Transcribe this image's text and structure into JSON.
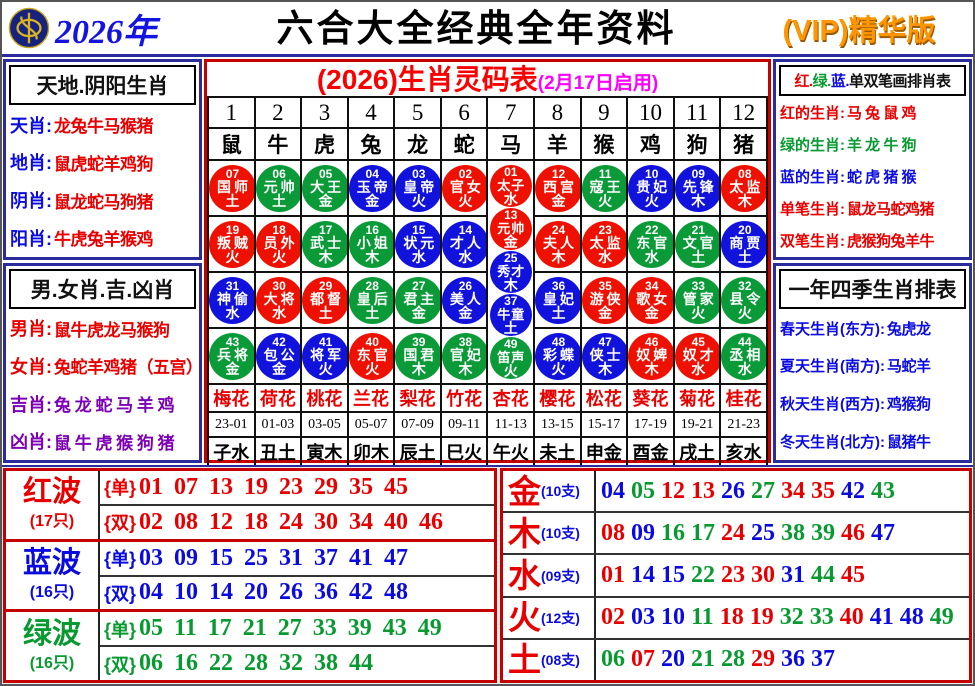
{
  "header": {
    "year": "2026年",
    "title": "六合大全经典全年资料",
    "vip": "(VIP)精华版"
  },
  "left_top": {
    "title": "天地.阴阳生肖",
    "rows": [
      {
        "label": "天肖",
        "value": "龙兔牛马猴猪",
        "lc": "blue",
        "vc": "red"
      },
      {
        "label": "地肖",
        "value": "鼠虎蛇羊鸡狗",
        "lc": "blue",
        "vc": "red"
      },
      {
        "label": "阴肖",
        "value": "鼠龙蛇马狗猪",
        "lc": "blue",
        "vc": "red"
      },
      {
        "label": "阳肖",
        "value": "牛虎兔羊猴鸡",
        "lc": "blue",
        "vc": "red"
      }
    ]
  },
  "left_bottom": {
    "title": "男.女肖.吉.凶肖",
    "rows": [
      {
        "label": "男肖",
        "value": "鼠牛虎龙马猴狗",
        "lc": "red",
        "vc": "red"
      },
      {
        "label": "女肖",
        "value": "兔蛇羊鸡猪（五宫）",
        "lc": "red",
        "vc": "red"
      },
      {
        "label": "吉肖",
        "value": "兔 龙 蛇 马 羊 鸡",
        "lc": "purple",
        "vc": "purple"
      },
      {
        "label": "凶肖",
        "value": "鼠 牛 虎 猴 狗 猪",
        "lc": "purple",
        "vc": "purple"
      }
    ]
  },
  "right_top": {
    "title_segments": [
      {
        "text": "红.",
        "c": "red"
      },
      {
        "text": "绿.",
        "c": "green"
      },
      {
        "text": "蓝.",
        "c": "blue"
      },
      {
        "text": "单双笔画排肖表",
        "c": "black"
      }
    ],
    "rows": [
      {
        "label": "红的生肖",
        "value": "马 兔 鼠 鸡",
        "lc": "red",
        "vc": "red"
      },
      {
        "label": "绿的生肖",
        "value": "羊 龙 牛 狗",
        "lc": "green",
        "vc": "green"
      },
      {
        "label": "蓝的生肖",
        "value": "蛇 虎 猪 猴",
        "lc": "blue",
        "vc": "blue"
      },
      {
        "label": "单笔生肖",
        "value": "鼠龙马蛇鸡猪",
        "lc": "red",
        "vc": "red"
      },
      {
        "label": "双笔生肖",
        "value": "虎猴狗兔羊牛",
        "lc": "red",
        "vc": "red"
      }
    ]
  },
  "right_bottom": {
    "title": "一年四季生肖排表",
    "rows": [
      {
        "label": "春天生肖(东方)",
        "value": "兔虎龙",
        "lc": "blue",
        "vc": "blue"
      },
      {
        "label": "夏天生肖(南方)",
        "value": "马蛇羊",
        "lc": "blue",
        "vc": "blue"
      },
      {
        "label": "秋天生肖(西方)",
        "value": "鸡猴狗",
        "lc": "blue",
        "vc": "blue"
      },
      {
        "label": "冬天生肖(北方)",
        "value": "鼠猪牛",
        "lc": "blue",
        "vc": "blue"
      }
    ]
  },
  "center": {
    "title": "(2026)生肖灵码表",
    "subtitle": "(2月17日启用)",
    "col_numbers": [
      "1",
      "2",
      "3",
      "4",
      "5",
      "6",
      "7",
      "8",
      "9",
      "10",
      "11",
      "12"
    ],
    "zodiacs": [
      "鼠",
      "牛",
      "虎",
      "兔",
      "龙",
      "蛇",
      "马",
      "羊",
      "猴",
      "鸡",
      "狗",
      "猪"
    ],
    "columns": [
      {
        "circles": [
          {
            "n": "07",
            "name": "国师",
            "elem": "土"
          },
          {
            "n": "19",
            "name": "叛贼",
            "elem": "火"
          },
          {
            "n": "31",
            "name": "神偷",
            "elem": "水"
          },
          {
            "n": "43",
            "name": "兵将",
            "elem": "金"
          }
        ]
      },
      {
        "circles": [
          {
            "n": "06",
            "name": "元帅",
            "elem": "土"
          },
          {
            "n": "18",
            "name": "员外",
            "elem": "火"
          },
          {
            "n": "30",
            "name": "大将",
            "elem": "水"
          },
          {
            "n": "42",
            "name": "包公",
            "elem": "金"
          }
        ]
      },
      {
        "circles": [
          {
            "n": "05",
            "name": "大王",
            "elem": "金"
          },
          {
            "n": "17",
            "name": "武士",
            "elem": "木"
          },
          {
            "n": "29",
            "name": "都督",
            "elem": "土"
          },
          {
            "n": "41",
            "name": "将军",
            "elem": "火"
          }
        ]
      },
      {
        "circles": [
          {
            "n": "04",
            "name": "玉帝",
            "elem": "金"
          },
          {
            "n": "16",
            "name": "小姐",
            "elem": "木"
          },
          {
            "n": "28",
            "name": "皇后",
            "elem": "土"
          },
          {
            "n": "40",
            "name": "东官",
            "elem": "火"
          }
        ]
      },
      {
        "circles": [
          {
            "n": "03",
            "name": "皇帝",
            "elem": "火"
          },
          {
            "n": "15",
            "name": "状元",
            "elem": "水"
          },
          {
            "n": "27",
            "name": "君主",
            "elem": "金"
          },
          {
            "n": "39",
            "name": "国君",
            "elem": "木"
          }
        ]
      },
      {
        "circles": [
          {
            "n": "02",
            "name": "官女",
            "elem": "火"
          },
          {
            "n": "14",
            "name": "才人",
            "elem": "水"
          },
          {
            "n": "26",
            "name": "美人",
            "elem": "金"
          },
          {
            "n": "38",
            "name": "官妃",
            "elem": "木"
          }
        ]
      },
      {
        "circles": [
          {
            "n": "01",
            "name": "太子",
            "elem": "水"
          },
          {
            "n": "13",
            "name": "元帅",
            "elem": "金"
          },
          {
            "n": "25",
            "name": "秀才",
            "elem": "木"
          },
          {
            "n": "37",
            "name": "牛童",
            "elem": "土"
          },
          {
            "n": "49",
            "name": "笛声",
            "elem": "火"
          }
        ]
      },
      {
        "circles": [
          {
            "n": "12",
            "name": "西宫",
            "elem": "金"
          },
          {
            "n": "24",
            "name": "夫人",
            "elem": "木"
          },
          {
            "n": "36",
            "name": "皇妃",
            "elem": "土"
          },
          {
            "n": "48",
            "name": "彩蝶",
            "elem": "火"
          }
        ]
      },
      {
        "circles": [
          {
            "n": "11",
            "name": "寇王",
            "elem": "火"
          },
          {
            "n": "23",
            "name": "太监",
            "elem": "水"
          },
          {
            "n": "35",
            "name": "游侠",
            "elem": "金"
          },
          {
            "n": "47",
            "name": "侠士",
            "elem": "木"
          }
        ]
      },
      {
        "circles": [
          {
            "n": "10",
            "name": "贵妃",
            "elem": "火"
          },
          {
            "n": "22",
            "name": "东官",
            "elem": "水"
          },
          {
            "n": "34",
            "name": "歌女",
            "elem": "金"
          },
          {
            "n": "46",
            "name": "奴婢",
            "elem": "木"
          }
        ]
      },
      {
        "circles": [
          {
            "n": "09",
            "name": "先锋",
            "elem": "木"
          },
          {
            "n": "21",
            "name": "文官",
            "elem": "土"
          },
          {
            "n": "33",
            "name": "管家",
            "elem": "火"
          },
          {
            "n": "45",
            "name": "奴才",
            "elem": "水"
          }
        ]
      },
      {
        "circles": [
          {
            "n": "08",
            "name": "太监",
            "elem": "木"
          },
          {
            "n": "20",
            "name": "商贾",
            "elem": "土"
          },
          {
            "n": "32",
            "name": "县令",
            "elem": "火"
          },
          {
            "n": "44",
            "name": "丞相",
            "elem": "水"
          }
        ]
      }
    ],
    "flowers": [
      "梅花",
      "荷花",
      "桃花",
      "兰花",
      "梨花",
      "竹花",
      "杏花",
      "樱花",
      "松花",
      "葵花",
      "菊花",
      "桂花"
    ],
    "times": [
      "23-01",
      "01-03",
      "03-05",
      "05-07",
      "07-09",
      "09-11",
      "11-13",
      "13-15",
      "15-17",
      "17-19",
      "19-21",
      "21-23"
    ],
    "branches": [
      "子水",
      "丑土",
      "寅木",
      "卯木",
      "辰土",
      "巳火",
      "午火",
      "未土",
      "申金",
      "酉金",
      "戌土",
      "亥水"
    ]
  },
  "waves": [
    {
      "name": "红波",
      "count": "(17只)",
      "color": "red",
      "rows": [
        {
          "tag": "单",
          "nums": "01 07 13 19 23 29 35 45"
        },
        {
          "tag": "双",
          "nums": "02 08 12 18 24 30 34 40 46"
        }
      ]
    },
    {
      "name": "蓝波",
      "count": "(16只)",
      "color": "blue",
      "rows": [
        {
          "tag": "单",
          "nums": "03 09 15 25 31 37 41 47"
        },
        {
          "tag": "双",
          "nums": "04 10 14 20 26 36 42 48"
        }
      ]
    },
    {
      "name": "绿波",
      "count": "(16只)",
      "color": "green",
      "rows": [
        {
          "tag": "单",
          "nums": "05 11 17 21 27 33 39 43 49"
        },
        {
          "tag": "双",
          "nums": "06 16 22 28 32 38 44"
        }
      ]
    }
  ],
  "elements": [
    {
      "name": "金",
      "count": "(10支)",
      "nums": [
        "04",
        "05",
        "12",
        "13",
        "26",
        "27",
        "34",
        "35",
        "42",
        "43"
      ]
    },
    {
      "name": "木",
      "count": "(10支)",
      "nums": [
        "08",
        "09",
        "16",
        "17",
        "24",
        "25",
        "38",
        "39",
        "46",
        "47"
      ]
    },
    {
      "name": "水",
      "count": "(09支)",
      "nums": [
        "01",
        "14",
        "15",
        "22",
        "23",
        "30",
        "31",
        "44",
        "45"
      ]
    },
    {
      "name": "火",
      "count": "(12支)",
      "nums": [
        "02",
        "03",
        "10",
        "11",
        "18",
        "19",
        "32",
        "33",
        "40",
        "41",
        "48",
        "49"
      ]
    },
    {
      "name": "土",
      "count": "(08支)",
      "nums": [
        "06",
        "07",
        "20",
        "21",
        "28",
        "29",
        "36",
        "37"
      ]
    }
  ],
  "ball_colors": {
    "red": [
      "01",
      "02",
      "07",
      "08",
      "12",
      "13",
      "18",
      "19",
      "23",
      "24",
      "29",
      "30",
      "34",
      "35",
      "40",
      "45",
      "46"
    ],
    "blue": [
      "03",
      "04",
      "09",
      "10",
      "14",
      "15",
      "20",
      "25",
      "26",
      "31",
      "36",
      "37",
      "41",
      "42",
      "47",
      "48"
    ],
    "green": [
      "05",
      "06",
      "11",
      "16",
      "17",
      "21",
      "22",
      "27",
      "28",
      "32",
      "33",
      "38",
      "39",
      "43",
      "44",
      "49"
    ]
  }
}
